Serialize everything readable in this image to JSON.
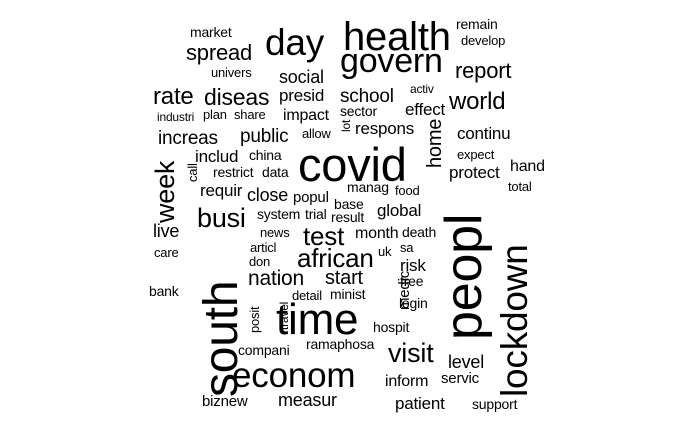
{
  "words": [
    {
      "text": "health",
      "weight": 40
    },
    {
      "text": "day",
      "weight": 37
    },
    {
      "text": "govern",
      "weight": 34
    },
    {
      "text": "market",
      "weight": 14
    },
    {
      "text": "spread",
      "weight": 22
    },
    {
      "text": "univers",
      "weight": 13
    },
    {
      "text": "remain",
      "weight": 14
    },
    {
      "text": "develop",
      "weight": 13
    },
    {
      "text": "report",
      "weight": 22
    },
    {
      "text": "social",
      "weight": 18
    },
    {
      "text": "rate",
      "weight": 24
    },
    {
      "text": "diseas",
      "weight": 23
    },
    {
      "text": "presid",
      "weight": 17
    },
    {
      "text": "school",
      "weight": 19
    },
    {
      "text": "activ",
      "weight": 12
    },
    {
      "text": "world",
      "weight": 24
    },
    {
      "text": "industri",
      "weight": 12
    },
    {
      "text": "plan",
      "weight": 13
    },
    {
      "text": "share",
      "weight": 13
    },
    {
      "text": "impact",
      "weight": 16
    },
    {
      "text": "sector",
      "weight": 14
    },
    {
      "text": "effect",
      "weight": 17
    },
    {
      "text": "increas",
      "weight": 19
    },
    {
      "text": "public",
      "weight": 19
    },
    {
      "text": "allow",
      "weight": 13
    },
    {
      "text": "lot",
      "weight": 12
    },
    {
      "text": "respons",
      "weight": 17
    },
    {
      "text": "continu",
      "weight": 17
    },
    {
      "text": "includ",
      "weight": 17
    },
    {
      "text": "china",
      "weight": 14
    },
    {
      "text": "covid",
      "weight": 47
    },
    {
      "text": "home",
      "weight": 20
    },
    {
      "text": "expect",
      "weight": 13
    },
    {
      "text": "call",
      "weight": 13
    },
    {
      "text": "restrict",
      "weight": 14
    },
    {
      "text": "data",
      "weight": 14
    },
    {
      "text": "hand",
      "weight": 16
    },
    {
      "text": "week",
      "weight": 27
    },
    {
      "text": "protect",
      "weight": 17
    },
    {
      "text": "requir",
      "weight": 17
    },
    {
      "text": "manag",
      "weight": 14
    },
    {
      "text": "food",
      "weight": 13
    },
    {
      "text": "total",
      "weight": 13
    },
    {
      "text": "close",
      "weight": 18
    },
    {
      "text": "popul",
      "weight": 15
    },
    {
      "text": "busi",
      "weight": 27
    },
    {
      "text": "base",
      "weight": 14
    },
    {
      "text": "global",
      "weight": 17
    },
    {
      "text": "system",
      "weight": 14
    },
    {
      "text": "trial",
      "weight": 14
    },
    {
      "text": "result",
      "weight": 14
    },
    {
      "text": "peopl",
      "weight": 52
    },
    {
      "text": "lockdown",
      "weight": 37
    },
    {
      "text": "live",
      "weight": 18
    },
    {
      "text": "news",
      "weight": 13
    },
    {
      "text": "test",
      "weight": 26
    },
    {
      "text": "month",
      "weight": 16
    },
    {
      "text": "death",
      "weight": 14
    },
    {
      "text": "care",
      "weight": 13
    },
    {
      "text": "articl",
      "weight": 13
    },
    {
      "text": "don",
      "weight": 13
    },
    {
      "text": "african",
      "weight": 26
    },
    {
      "text": "sa",
      "weight": 13
    },
    {
      "text": "uk",
      "weight": 13
    },
    {
      "text": "risk",
      "weight": 17
    },
    {
      "text": "south",
      "weight": 48
    },
    {
      "text": "nation",
      "weight": 21
    },
    {
      "text": "start",
      "weight": 20
    },
    {
      "text": "free",
      "weight": 14
    },
    {
      "text": "bank",
      "weight": 14
    },
    {
      "text": "detail",
      "weight": 13
    },
    {
      "text": "minist",
      "weight": 14
    },
    {
      "text": "medic",
      "weight": 15
    },
    {
      "text": "login",
      "weight": 14
    },
    {
      "text": "posit",
      "weight": 13
    },
    {
      "text": "travel",
      "weight": 12
    },
    {
      "text": "time",
      "weight": 44
    },
    {
      "text": "hospit",
      "weight": 14
    },
    {
      "text": "compani",
      "weight": 14
    },
    {
      "text": "ramaphosa",
      "weight": 14
    },
    {
      "text": "visit",
      "weight": 27
    },
    {
      "text": "level",
      "weight": 18
    },
    {
      "text": "econom",
      "weight": 35
    },
    {
      "text": "inform",
      "weight": 16
    },
    {
      "text": "servic",
      "weight": 15
    },
    {
      "text": "biznew",
      "weight": 15
    },
    {
      "text": "measur",
      "weight": 18
    },
    {
      "text": "patient",
      "weight": 17
    },
    {
      "text": "support",
      "weight": 14
    }
  ]
}
